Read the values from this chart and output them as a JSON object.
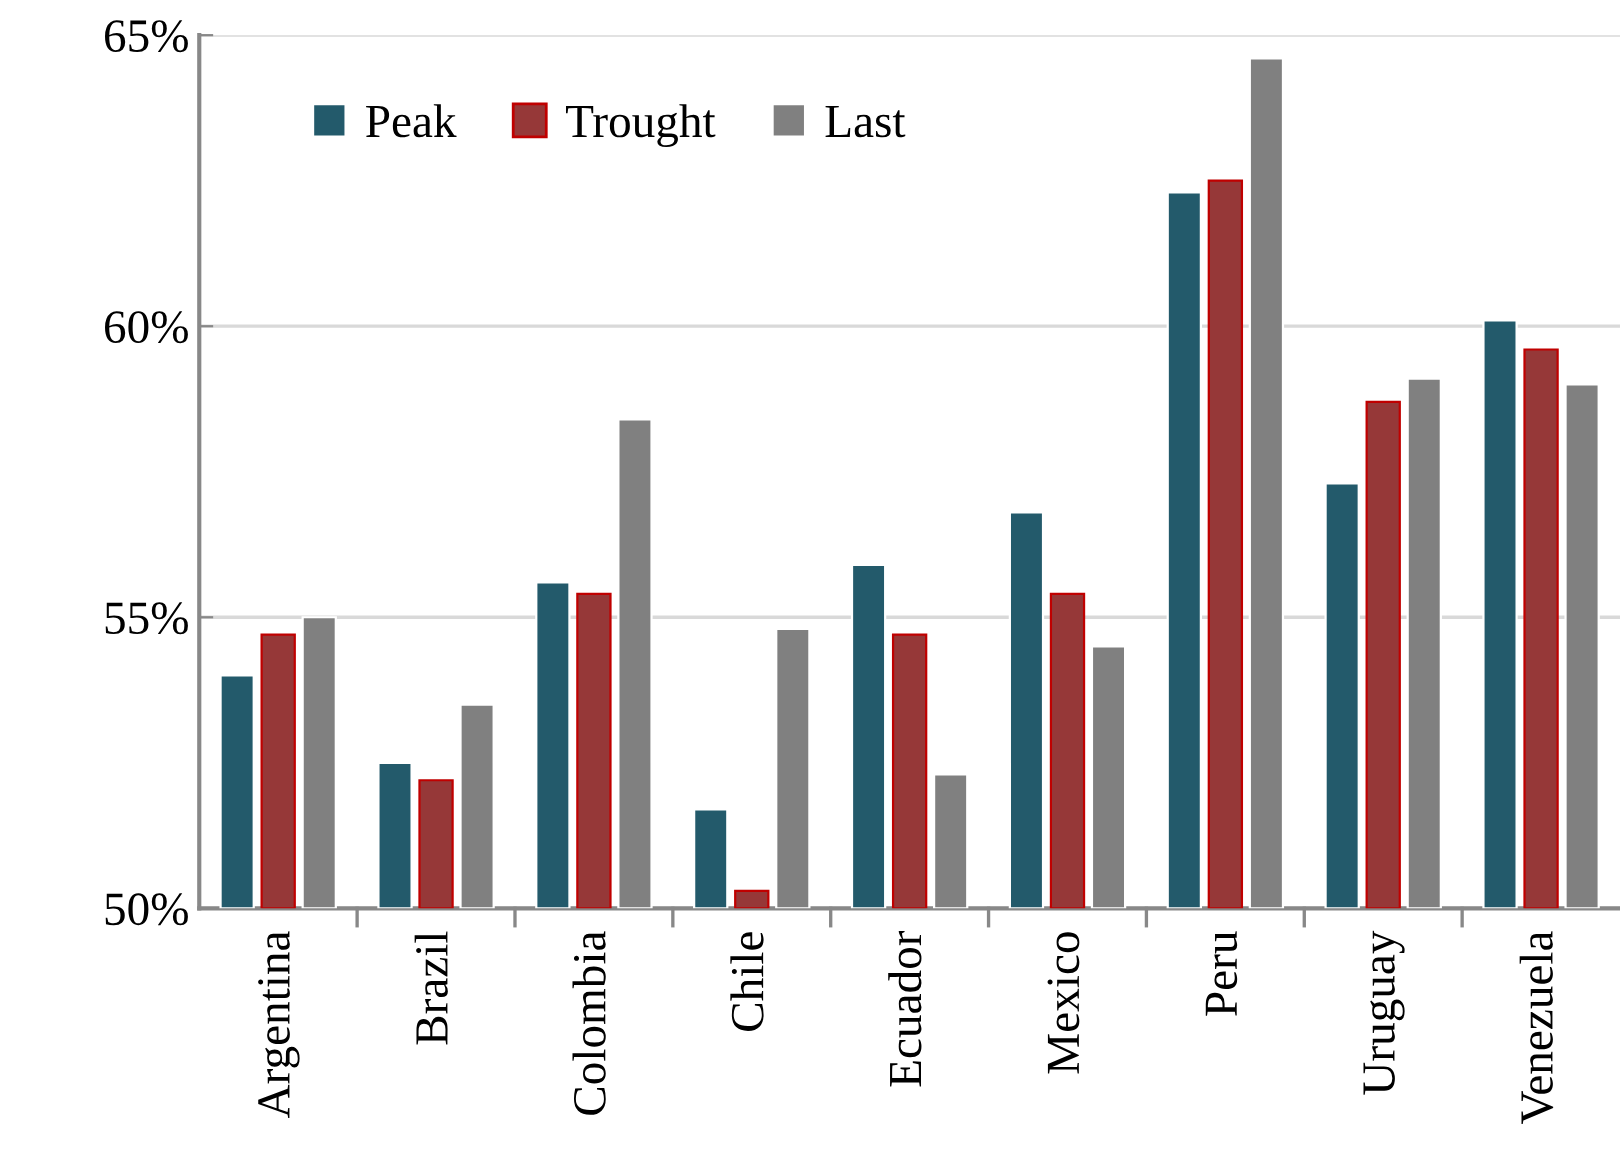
{
  "chart_data": {
    "type": "bar",
    "categories": [
      "Argentina",
      "Brazil",
      "Colombia",
      "Chile",
      "Ecuador",
      "Mexico",
      "Peru",
      "Uruguay",
      "Venezuela"
    ],
    "series": [
      {
        "name": "Peak",
        "color": "#235a6b",
        "values": [
          54.0,
          52.5,
          55.6,
          51.7,
          55.9,
          56.8,
          62.3,
          57.3,
          60.1
        ]
      },
      {
        "name": "Trought",
        "color": "#963838",
        "values": [
          54.7,
          52.2,
          55.4,
          50.3,
          54.7,
          55.4,
          62.5,
          58.7,
          59.6
        ]
      },
      {
        "name": "Last",
        "color": "#808080",
        "values": [
          55.0,
          53.5,
          58.4,
          54.8,
          52.3,
          54.5,
          64.6,
          59.1,
          59.0
        ]
      }
    ],
    "ylim": [
      50,
      65
    ],
    "yticks": [
      {
        "value": 50,
        "label": "50%"
      },
      {
        "value": 55,
        "label": "55%"
      },
      {
        "value": 60,
        "label": "60%"
      },
      {
        "value": 65,
        "label": "65%"
      }
    ],
    "grid": "y",
    "legend": "top left"
  }
}
